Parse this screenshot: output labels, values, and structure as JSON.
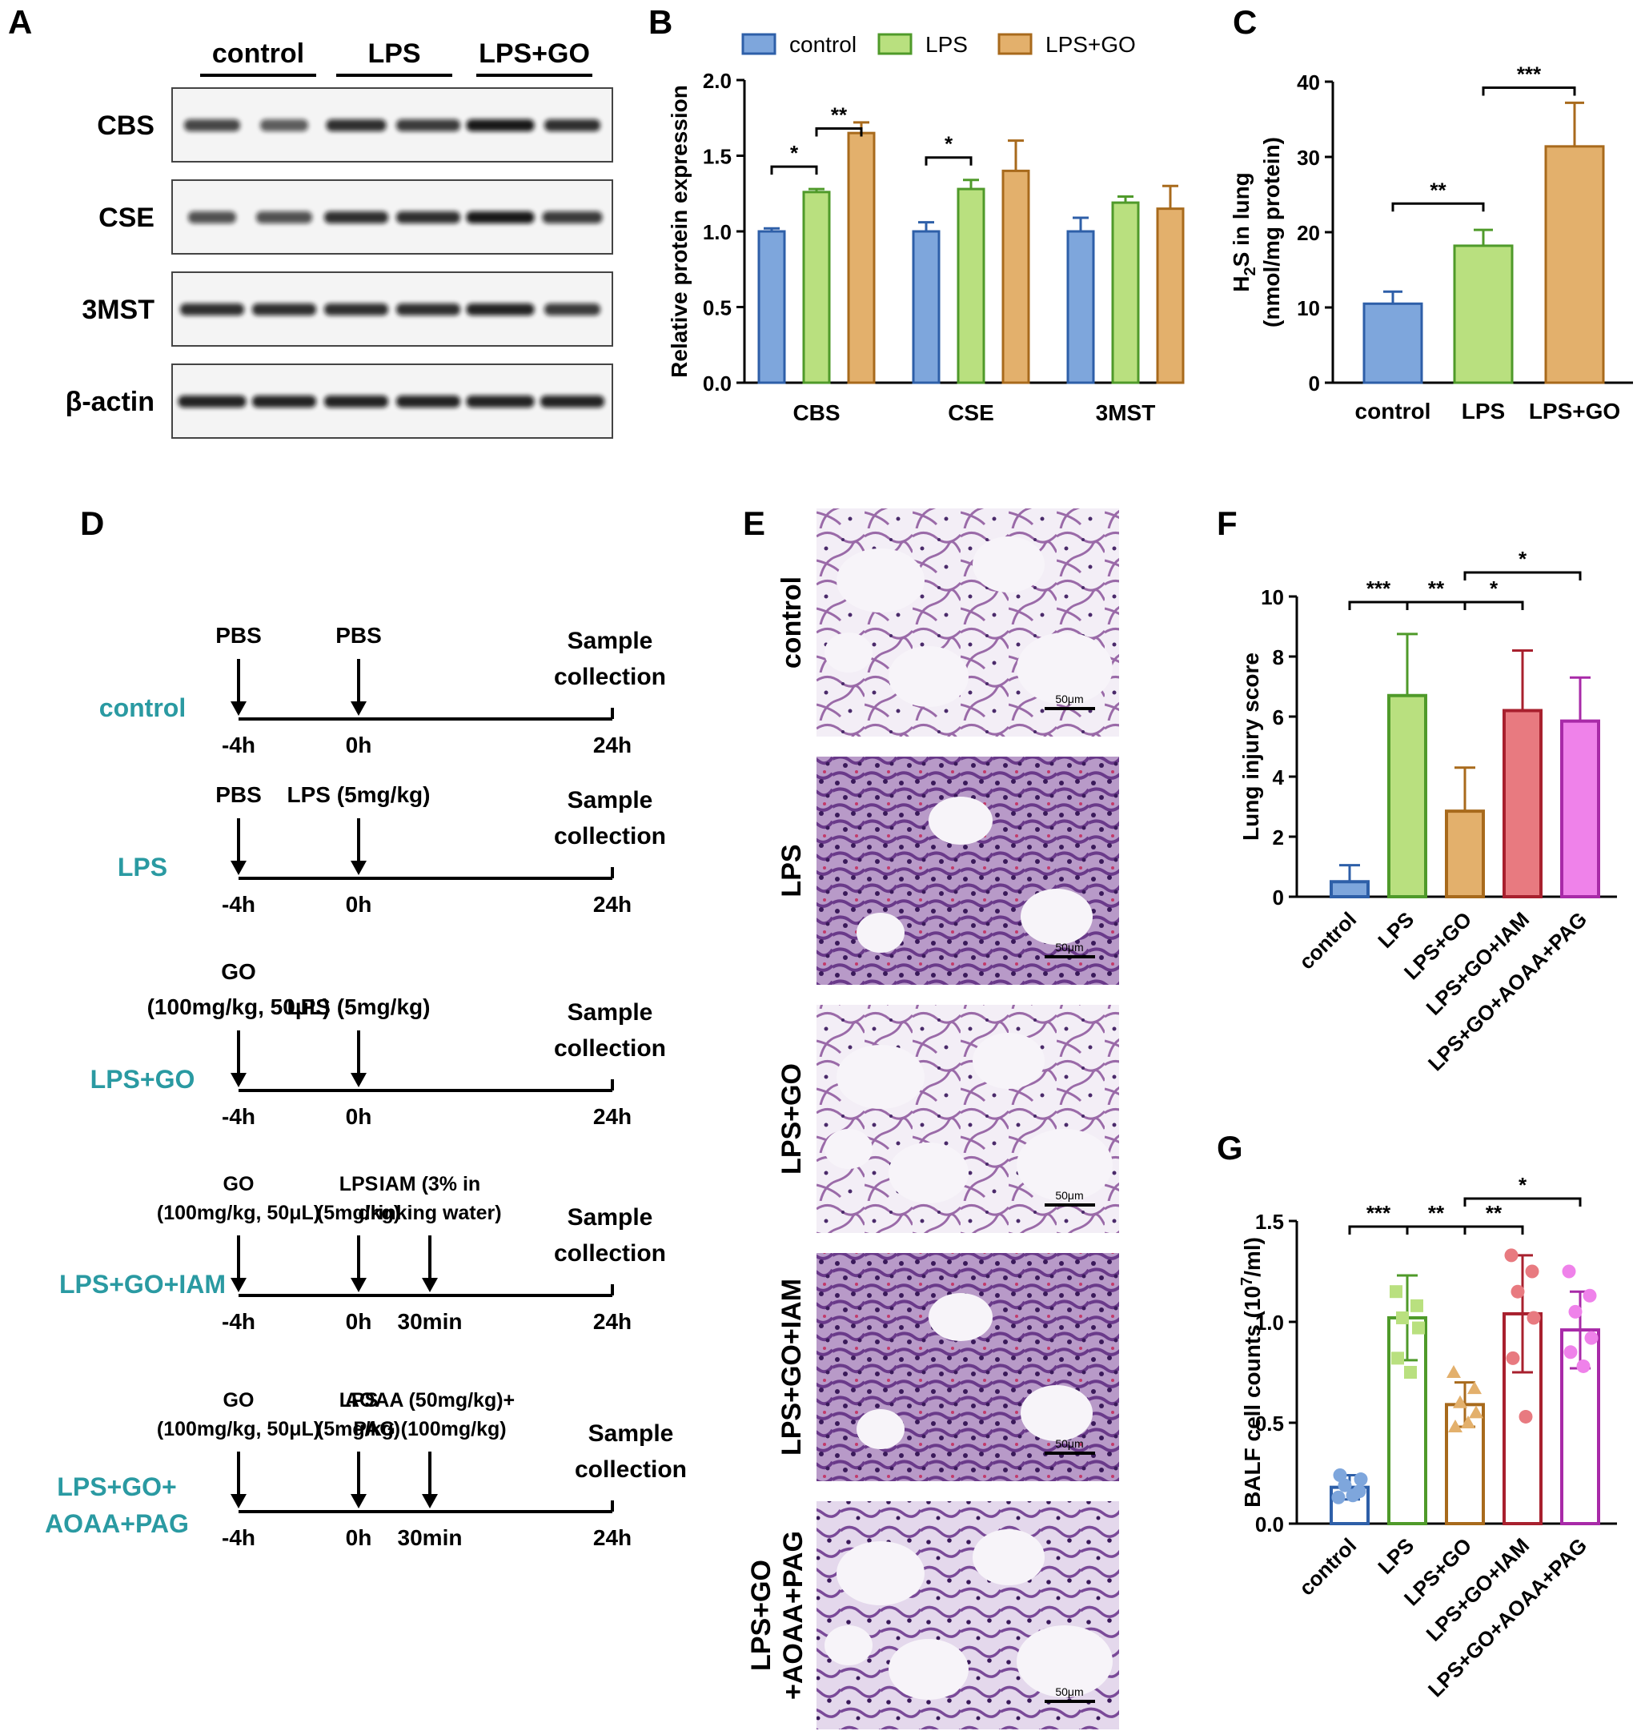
{
  "colors": {
    "control_fill": "#7ea6dc",
    "control_edge": "#2e5fa8",
    "lps_fill": "#b9e07f",
    "lps_edge": "#4f9a2a",
    "go_fill": "#e3b06c",
    "go_edge": "#a86a1c",
    "iam_fill": "#e87a80",
    "iam_edge": "#a8202e",
    "paag_fill": "#ef82ea",
    "paag_edge": "#a82aa8",
    "teal": "#2a9aa2"
  },
  "panel_labels": [
    "A",
    "B",
    "C",
    "D",
    "E",
    "F",
    "G"
  ],
  "panel_a": {
    "groups": [
      "control",
      "LPS",
      "LPS+GO"
    ],
    "rows": [
      "CBS",
      "CSE",
      "3MST",
      "β-actin"
    ]
  },
  "chart_data": [
    {
      "id": "B",
      "type": "bar",
      "categories": [
        "CBS",
        "CSE",
        "3MST"
      ],
      "series": [
        {
          "name": "control",
          "values": [
            1.0,
            1.0,
            1.0
          ],
          "errors": [
            0.02,
            0.06,
            0.09
          ]
        },
        {
          "name": "LPS",
          "values": [
            1.26,
            1.28,
            1.19
          ],
          "errors": [
            0.02,
            0.06,
            0.04
          ]
        },
        {
          "name": "LPS+GO",
          "values": [
            1.65,
            1.4,
            1.15
          ],
          "errors": [
            0.07,
            0.2,
            0.15
          ]
        }
      ],
      "ylabel": "Relative protein expression",
      "ylim": [
        0,
        2.0
      ],
      "yticks": [
        "0.0",
        "0.5",
        "1.0",
        "1.5",
        "2.0"
      ],
      "legend": "top",
      "significance": [
        {
          "category": "CBS",
          "from": 0,
          "to": 1,
          "label": "*"
        },
        {
          "category": "CBS",
          "from": 1,
          "to": 2,
          "label": "**"
        },
        {
          "category": "CSE",
          "from": 0,
          "to": 1,
          "label": "*"
        }
      ]
    },
    {
      "id": "C",
      "type": "bar",
      "categories": [
        "control",
        "LPS",
        "LPS+GO"
      ],
      "values": [
        10.5,
        18.2,
        31.4
      ],
      "errors": [
        1.6,
        2.1,
        5.8
      ],
      "ylabel_main": "H",
      "ylabel_sub": "2",
      "ylabel_rest": "S in lung",
      "ylabel2": "(nmol/mg protein)",
      "ylim": [
        0,
        40
      ],
      "yticks": [
        "0",
        "10",
        "20",
        "30",
        "40"
      ],
      "significance": [
        {
          "from": 0,
          "to": 1,
          "label": "**"
        },
        {
          "from": 1,
          "to": 2,
          "label": "***"
        }
      ]
    },
    {
      "id": "F",
      "type": "bar",
      "categories": [
        "control",
        "LPS",
        "LPS+GO",
        "LPS+GO+IAM",
        "LPS+GO+AOAA+PAG"
      ],
      "values": [
        0.5,
        6.7,
        2.85,
        6.2,
        5.85
      ],
      "errors": [
        0.55,
        2.05,
        1.45,
        2.0,
        1.45
      ],
      "ylabel": "Lung injury score",
      "ylim": [
        0,
        10
      ],
      "yticks": [
        "0",
        "2",
        "4",
        "6",
        "8",
        "10"
      ],
      "significance": [
        {
          "from": 0,
          "to": 1,
          "label": "***"
        },
        {
          "from": 1,
          "to": 2,
          "label": "**"
        },
        {
          "from": 2,
          "to": 3,
          "label": "*"
        },
        {
          "from": 2,
          "to": 4,
          "label": "*"
        }
      ]
    },
    {
      "id": "G",
      "type": "bar",
      "categories": [
        "control",
        "LPS",
        "LPS+GO",
        "LPS+GO+IAM",
        "LPS+GO+AOAA+PAG"
      ],
      "values": [
        0.18,
        1.02,
        0.59,
        1.04,
        0.96
      ],
      "errors": [
        0.06,
        0.21,
        0.11,
        0.29,
        0.19
      ],
      "points": [
        [
          0.13,
          0.16,
          0.19,
          0.22,
          0.24,
          0.14
        ],
        [
          1.15,
          1.08,
          1.02,
          0.97,
          0.82,
          0.75
        ],
        [
          0.75,
          0.67,
          0.6,
          0.55,
          0.48,
          0.5
        ],
        [
          1.33,
          1.25,
          1.15,
          1.02,
          0.82,
          0.53
        ],
        [
          1.25,
          1.13,
          1.05,
          0.92,
          0.85,
          0.78
        ]
      ],
      "marker_shapes": [
        "circle",
        "square",
        "triangle",
        "circle",
        "circle"
      ],
      "ylabel_main": "BALF cell counts (10",
      "ylabel_sup": "7",
      "ylabel_rest": "/ml)",
      "ylim": [
        0,
        1.5
      ],
      "yticks": [
        "0.0",
        "0.5",
        "1.0",
        "1.5"
      ],
      "significance": [
        {
          "from": 0,
          "to": 1,
          "label": "***"
        },
        {
          "from": 1,
          "to": 2,
          "label": "**"
        },
        {
          "from": 2,
          "to": 3,
          "label": "**"
        },
        {
          "from": 2,
          "to": 4,
          "label": "*"
        }
      ]
    }
  ],
  "timeline": {
    "rows": [
      {
        "group": "control",
        "events": [
          {
            "t": "-4h",
            "top": [
              "PBS"
            ]
          },
          {
            "t": "0h",
            "top": [
              "PBS"
            ]
          }
        ],
        "end": "24h",
        "sample": [
          "Sample",
          "collection"
        ]
      },
      {
        "group": "LPS",
        "events": [
          {
            "t": "-4h",
            "top": [
              "PBS"
            ]
          },
          {
            "t": "0h",
            "top": [
              "LPS (5mg/kg)"
            ]
          }
        ],
        "end": "24h",
        "sample": [
          "Sample",
          "collection"
        ]
      },
      {
        "group": "LPS+GO",
        "events": [
          {
            "t": "-4h",
            "top": [
              "GO",
              "(100mg/kg, 50μL)"
            ]
          },
          {
            "t": "0h",
            "top": [
              "LPS (5mg/kg)"
            ]
          }
        ],
        "end": "24h",
        "sample": [
          "Sample",
          "collection"
        ]
      },
      {
        "group": "LPS+GO+IAM",
        "events": [
          {
            "t": "-4h",
            "top": [
              "GO",
              "(100mg/kg, 50μL)"
            ]
          },
          {
            "t": "0h",
            "top": [
              "LPS",
              "(5mg/kg)"
            ]
          },
          {
            "t": "30min",
            "top": [
              "IAM (3% in",
              "drinking water)"
            ]
          }
        ],
        "end": "24h",
        "sample": [
          "Sample",
          "collection"
        ]
      },
      {
        "group_lines": [
          "LPS+GO+",
          "AOAA+PAG"
        ],
        "events": [
          {
            "t": "-4h",
            "top": [
              "GO",
              "(100mg/kg, 50μL)"
            ]
          },
          {
            "t": "0h",
            "top": [
              "LPS",
              "(5mg/kg)"
            ]
          },
          {
            "t": "30min",
            "top": [
              "AOAA (50mg/kg)+",
              "PAG (100mg/kg)"
            ]
          }
        ],
        "end": "24h",
        "sample": [
          "Sample",
          "collection"
        ]
      }
    ]
  },
  "histology": {
    "labels": [
      "control",
      "LPS",
      "LPS+GO",
      "LPS+GO+IAM"
    ],
    "last_label": [
      "LPS+GO",
      "+AOAA+PAG"
    ],
    "scale_bar": "50μm"
  }
}
